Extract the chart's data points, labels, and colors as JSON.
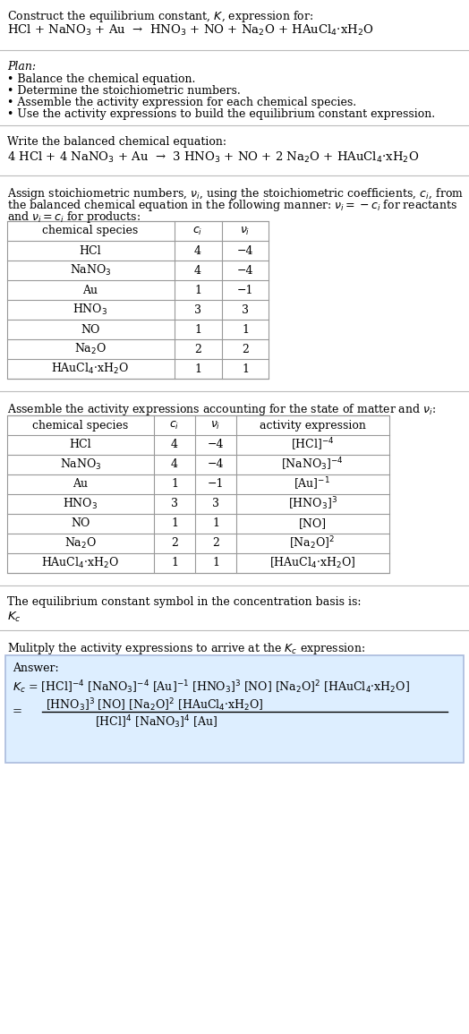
{
  "bg_color": "#ffffff",
  "text_color": "#000000",
  "title_line1": "Construct the equilibrium constant, $K$, expression for:",
  "title_line2": "HCl + NaNO$_3$ + Au  →  HNO$_3$ + NO + Na$_2$O + HAuCl$_4$·xH$_2$O",
  "plan_header": "Plan:",
  "plan_items": [
    "• Balance the chemical equation.",
    "• Determine the stoichiometric numbers.",
    "• Assemble the activity expression for each chemical species.",
    "• Use the activity expressions to build the equilibrium constant expression."
  ],
  "balanced_header": "Write the balanced chemical equation:",
  "balanced_eq": "4 HCl + 4 NaNO$_3$ + Au  →  3 HNO$_3$ + NO + 2 Na$_2$O + HAuCl$_4$·xH$_2$O",
  "stoich_hdr1": "Assign stoichiometric numbers, $\\nu_i$, using the stoichiometric coefficients, $c_i$, from",
  "stoich_hdr2": "the balanced chemical equation in the following manner: $\\nu_i = -c_i$ for reactants",
  "stoich_hdr3": "and $\\nu_i = c_i$ for products:",
  "table1_headers": [
    "chemical species",
    "$c_i$",
    "$\\nu_i$"
  ],
  "table1_rows": [
    [
      "HCl",
      "4",
      "−4"
    ],
    [
      "NaNO$_3$",
      "4",
      "−4"
    ],
    [
      "Au",
      "1",
      "−1"
    ],
    [
      "HNO$_3$",
      "3",
      "3"
    ],
    [
      "NO",
      "1",
      "1"
    ],
    [
      "Na$_2$O",
      "2",
      "2"
    ],
    [
      "HAuCl$_4$·xH$_2$O",
      "1",
      "1"
    ]
  ],
  "activity_hdr": "Assemble the activity expressions accounting for the state of matter and $\\nu_i$:",
  "table2_headers": [
    "chemical species",
    "$c_i$",
    "$\\nu_i$",
    "activity expression"
  ],
  "table2_rows": [
    [
      "HCl",
      "4",
      "−4",
      "[HCl]$^{-4}$"
    ],
    [
      "NaNO$_3$",
      "4",
      "−4",
      "[NaNO$_3$]$^{-4}$"
    ],
    [
      "Au",
      "1",
      "−1",
      "[Au]$^{-1}$"
    ],
    [
      "HNO$_3$",
      "3",
      "3",
      "[HNO$_3$]$^3$"
    ],
    [
      "NO",
      "1",
      "1",
      "[NO]"
    ],
    [
      "Na$_2$O",
      "2",
      "2",
      "[Na$_2$O]$^2$"
    ],
    [
      "HAuCl$_4$·xH$_2$O",
      "1",
      "1",
      "[HAuCl$_4$·xH$_2$O]"
    ]
  ],
  "kc_header": "The equilibrium constant symbol in the concentration basis is:",
  "kc_symbol": "$K_c$",
  "multiply_header": "Mulitply the activity expressions to arrive at the $K_c$ expression:",
  "answer_label": "Answer:",
  "answer_line1": "$K_c$ = [HCl]$^{-4}$ [NaNO$_3$]$^{-4}$ [Au]$^{-1}$ [HNO$_3$]$^3$ [NO] [Na$_2$O]$^2$ [HAuCl$_4$·xH$_2$O]",
  "answer_eq": "=",
  "answer_num": "[HNO$_3$]$^3$ [NO] [Na$_2$O]$^2$ [HAuCl$_4$·xH$_2$O]",
  "answer_den": "[HCl]$^4$ [NaNO$_3$]$^4$ [Au]",
  "answer_box_color": "#ddeeff",
  "answer_box_border": "#aabbdd",
  "fs": 9.5,
  "fs_small": 9.0
}
